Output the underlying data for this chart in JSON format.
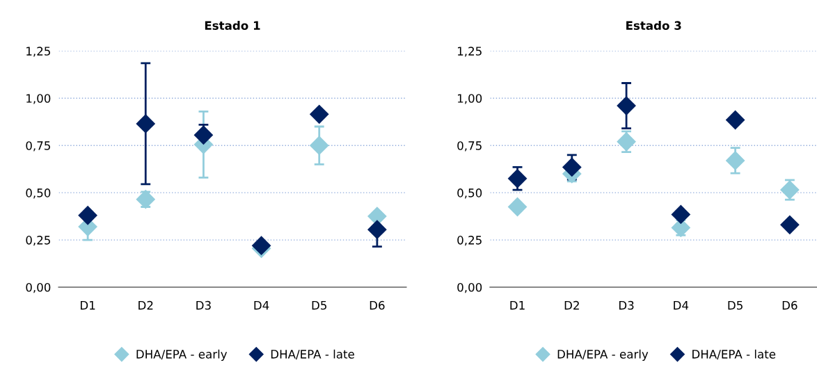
{
  "chart_data": [
    {
      "type": "scatter",
      "title": "Estado 1",
      "categories": [
        "D1",
        "D2",
        "D3",
        "D4",
        "D5",
        "D6"
      ],
      "ylim": [
        0,
        1.25
      ],
      "yticks": [
        {
          "value": 0,
          "label": "0,00"
        },
        {
          "value": 0.25,
          "label": "0,25"
        },
        {
          "value": 0.5,
          "label": "0,50"
        },
        {
          "value": 0.75,
          "label": "0,75"
        },
        {
          "value": 1.0,
          "label": "1,00"
        },
        {
          "value": 1.25,
          "label": "1,25"
        }
      ],
      "grid": "y",
      "legend": "bottom",
      "marker": "diamond",
      "series": [
        {
          "name": "DHA/EPA - early",
          "color": "#92cddc",
          "values": [
            0.32,
            0.465,
            0.755,
            0.205,
            0.75,
            0.375
          ],
          "errors": [
            0.07,
            0.04,
            0.175,
            null,
            0.1,
            null
          ]
        },
        {
          "name": "DHA/EPA - late",
          "color": "#002060",
          "values": [
            0.38,
            0.865,
            0.805,
            0.22,
            0.915,
            0.305
          ],
          "errors": [
            null,
            0.32,
            0.055,
            null,
            null,
            0.09
          ]
        }
      ]
    },
    {
      "type": "scatter",
      "title": "Estado 3",
      "categories": [
        "D1",
        "D2",
        "D3",
        "D4",
        "D5",
        "D6"
      ],
      "ylim": [
        0,
        1.25
      ],
      "yticks": [
        {
          "value": 0,
          "label": "0,00"
        },
        {
          "value": 0.25,
          "label": "0,25"
        },
        {
          "value": 0.5,
          "label": "0,50"
        },
        {
          "value": 0.75,
          "label": "0,75"
        },
        {
          "value": 1.0,
          "label": "1,00"
        },
        {
          "value": 1.25,
          "label": "1,25"
        }
      ],
      "grid": "y",
      "legend": "bottom",
      "marker": "diamond",
      "series": [
        {
          "name": "DHA/EPA - early",
          "color": "#92cddc",
          "values": [
            0.425,
            0.6,
            0.77,
            0.315,
            0.67,
            0.515
          ],
          "errors": [
            null,
            0.04,
            0.055,
            0.04,
            0.067,
            0.052
          ]
        },
        {
          "name": "DHA/EPA - late",
          "color": "#002060",
          "values": [
            0.575,
            0.635,
            0.96,
            0.385,
            0.885,
            0.33
          ],
          "errors": [
            0.06,
            0.065,
            0.12,
            null,
            null,
            null
          ]
        }
      ]
    }
  ]
}
